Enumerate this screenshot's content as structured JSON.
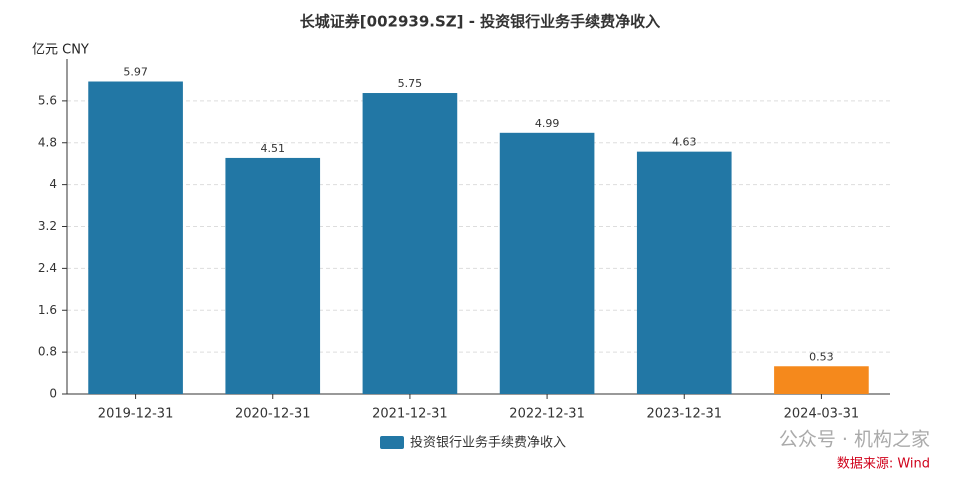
{
  "chart_data": {
    "type": "bar",
    "title": "长城证券[002939.SZ] - 投资银行业务手续费净收入",
    "y_label": "亿元  CNY",
    "categories": [
      "2019-12-31",
      "2020-12-31",
      "2021-12-31",
      "2022-12-31",
      "2023-12-31",
      "2024-03-31"
    ],
    "series": [
      {
        "name": "投资银行业务手续费净收入",
        "color": "#2277a5",
        "values": [
          5.97,
          4.51,
          5.75,
          4.99,
          4.63,
          0.53
        ],
        "colors": [
          "#2277a5",
          "#2277a5",
          "#2277a5",
          "#2277a5",
          "#2277a5",
          "#f5891c"
        ]
      }
    ],
    "ylim": [
      0,
      6.4
    ],
    "yticks": [
      0,
      0.8,
      1.6,
      2.4,
      3.2,
      4,
      4.8,
      5.6
    ],
    "grid": true,
    "watermark": "公众号 · 机构之家",
    "source": "数据来源: Wind"
  }
}
